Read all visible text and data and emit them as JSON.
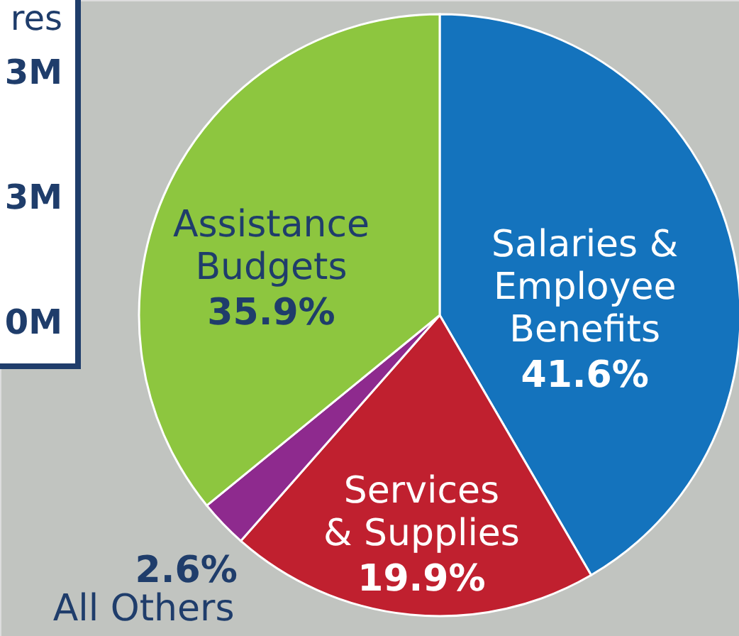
{
  "chart_data": {
    "type": "pie",
    "categories": [
      "Salaries &\nEmployee\nBenefits",
      "Services\n& Supplies",
      "All Others",
      "Assistance\nBudgets"
    ],
    "values": [
      41.6,
      19.9,
      2.6,
      35.9
    ],
    "colors": [
      "#1473bd",
      "#c0202f",
      "#8e2a8e",
      "#8dc63f"
    ],
    "value_labels": [
      "41.6%",
      "19.9%",
      "2.6%",
      "35.9%"
    ],
    "annotations": [
      "res",
      "3M",
      "3M",
      "0M"
    ]
  }
}
